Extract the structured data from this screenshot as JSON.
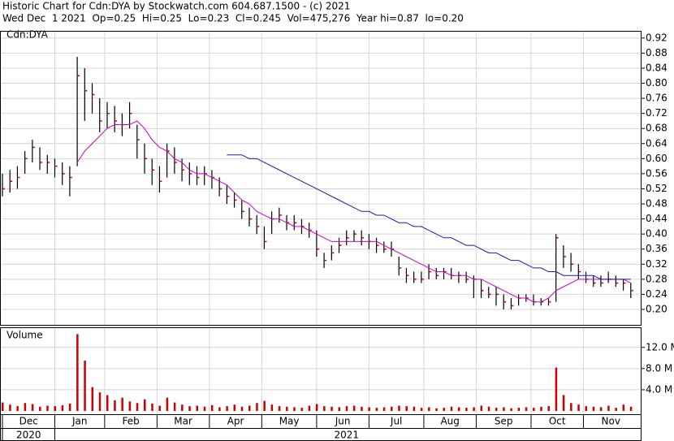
{
  "chart_data": {
    "type": "ohlc",
    "title": "Historic Chart for Cdn:DYA by Stockwatch.com 604.687.1500 - (c) 2021",
    "subtitle": "Wed Dec  1 2021  Op=0.25  Hi=0.25  Lo=0.23  Cl=0.245  Vol=475,276  Year hi=0.87  lo=0.20",
    "symbol": "Cdn:DYA",
    "grid": true,
    "bar_color": "#000000",
    "close_color": "#cc0000",
    "xlim": [
      0,
      255
    ],
    "x": [
      0,
      3,
      6,
      9,
      12,
      15,
      18,
      21,
      24,
      27,
      30,
      33,
      36,
      39,
      42,
      45,
      48,
      51,
      54,
      57,
      60,
      63,
      66,
      69,
      72,
      75,
      78,
      81,
      84,
      87,
      90,
      93,
      96,
      99,
      102,
      105,
      108,
      111,
      114,
      117,
      120,
      123,
      126,
      129,
      132,
      135,
      138,
      141,
      144,
      147,
      150,
      153,
      156,
      159,
      162,
      165,
      168,
      171,
      174,
      177,
      180,
      183,
      186,
      189,
      192,
      195,
      198,
      201,
      204,
      207,
      210,
      213,
      216,
      219,
      222,
      225,
      228,
      231,
      234,
      237,
      240,
      243,
      246,
      249,
      252
    ],
    "xticks": [
      {
        "value": 0,
        "label": "Dec"
      },
      {
        "value": 21,
        "label": "Jan"
      },
      {
        "value": 41,
        "label": "Feb"
      },
      {
        "value": 62,
        "label": "Mar"
      },
      {
        "value": 83,
        "label": "Apr"
      },
      {
        "value": 104,
        "label": "May"
      },
      {
        "value": 126,
        "label": "Jun"
      },
      {
        "value": 147,
        "label": "Jul"
      },
      {
        "value": 169,
        "label": "Aug"
      },
      {
        "value": 190,
        "label": "Sep"
      },
      {
        "value": 212,
        "label": "Oct"
      },
      {
        "value": 233,
        "label": "Nov"
      }
    ],
    "year_ticks": [
      {
        "value": 0,
        "label": "2020"
      },
      {
        "value": 21,
        "label": "2021"
      }
    ],
    "ylim": [
      0.159,
      0.939
    ],
    "yticks": [
      {
        "value": 0.2,
        "label": "0.20"
      },
      0.24,
      0.28,
      0.32,
      0.36,
      {
        "value": 0.4,
        "label": "0.40"
      },
      0.44,
      0.48,
      0.52,
      0.56,
      {
        "value": 0.6,
        "label": "0.60"
      },
      0.64,
      0.68,
      0.72,
      0.76,
      {
        "value": 0.8,
        "label": "0.80"
      },
      0.84,
      0.88,
      0.92
    ],
    "high": [
      0.56,
      0.57,
      0.58,
      0.62,
      0.65,
      0.63,
      0.61,
      0.6,
      0.59,
      0.58,
      0.87,
      0.84,
      0.8,
      0.76,
      0.75,
      0.74,
      0.72,
      0.75,
      0.69,
      0.64,
      0.6,
      0.58,
      0.64,
      0.63,
      0.6,
      0.59,
      0.58,
      0.58,
      0.57,
      0.55,
      0.53,
      0.51,
      0.49,
      0.47,
      0.45,
      0.42,
      0.46,
      0.47,
      0.45,
      0.45,
      0.44,
      0.43,
      0.41,
      0.35,
      0.37,
      0.39,
      0.41,
      0.41,
      0.41,
      0.4,
      0.39,
      0.38,
      0.38,
      0.34,
      0.31,
      0.3,
      0.3,
      0.32,
      0.31,
      0.31,
      0.31,
      0.3,
      0.3,
      0.29,
      0.28,
      0.26,
      0.26,
      0.24,
      0.23,
      0.24,
      0.24,
      0.24,
      0.23,
      0.23,
      0.4,
      0.37,
      0.35,
      0.32,
      0.3,
      0.29,
      0.29,
      0.3,
      0.29,
      0.28,
      0.27
    ],
    "low": [
      0.5,
      0.51,
      0.52,
      0.56,
      0.59,
      0.57,
      0.56,
      0.55,
      0.53,
      0.5,
      0.58,
      0.7,
      0.72,
      0.67,
      0.68,
      0.67,
      0.66,
      0.68,
      0.6,
      0.56,
      0.53,
      0.51,
      0.55,
      0.56,
      0.54,
      0.53,
      0.53,
      0.53,
      0.52,
      0.5,
      0.48,
      0.47,
      0.44,
      0.42,
      0.4,
      0.36,
      0.4,
      0.43,
      0.41,
      0.41,
      0.4,
      0.39,
      0.34,
      0.31,
      0.33,
      0.35,
      0.37,
      0.38,
      0.37,
      0.36,
      0.35,
      0.35,
      0.34,
      0.29,
      0.27,
      0.27,
      0.27,
      0.28,
      0.28,
      0.28,
      0.28,
      0.27,
      0.27,
      0.23,
      0.23,
      0.23,
      0.21,
      0.2,
      0.2,
      0.21,
      0.22,
      0.21,
      0.21,
      0.21,
      0.22,
      0.31,
      0.3,
      0.28,
      0.27,
      0.26,
      0.26,
      0.27,
      0.26,
      0.25,
      0.23
    ],
    "close": [
      0.52,
      0.54,
      0.55,
      0.6,
      0.63,
      0.59,
      0.59,
      0.58,
      0.56,
      0.55,
      0.82,
      0.78,
      0.77,
      0.7,
      0.72,
      0.7,
      0.69,
      0.72,
      0.65,
      0.6,
      0.57,
      0.54,
      0.62,
      0.59,
      0.57,
      0.56,
      0.55,
      0.56,
      0.55,
      0.52,
      0.5,
      0.49,
      0.46,
      0.44,
      0.42,
      0.38,
      0.44,
      0.45,
      0.43,
      0.43,
      0.42,
      0.41,
      0.36,
      0.33,
      0.35,
      0.37,
      0.39,
      0.4,
      0.39,
      0.38,
      0.37,
      0.36,
      0.36,
      0.31,
      0.29,
      0.28,
      0.28,
      0.3,
      0.29,
      0.3,
      0.29,
      0.29,
      0.28,
      0.28,
      0.25,
      0.24,
      0.24,
      0.22,
      0.21,
      0.23,
      0.23,
      0.22,
      0.22,
      0.22,
      0.39,
      0.34,
      0.32,
      0.3,
      0.28,
      0.27,
      0.27,
      0.28,
      0.27,
      0.27,
      0.25
    ],
    "series": [
      {
        "color": "#cc00cc",
        "values": [
          null,
          null,
          null,
          null,
          null,
          null,
          null,
          null,
          null,
          null,
          0.59,
          0.62,
          0.64,
          0.66,
          0.68,
          0.69,
          0.69,
          0.69,
          0.7,
          0.68,
          0.65,
          0.63,
          0.62,
          0.6,
          0.59,
          0.57,
          0.56,
          0.56,
          0.55,
          0.54,
          0.53,
          0.51,
          0.49,
          0.48,
          0.46,
          0.45,
          0.44,
          0.44,
          0.43,
          0.42,
          0.42,
          0.41,
          0.4,
          0.39,
          0.38,
          0.38,
          0.38,
          0.38,
          0.38,
          0.38,
          0.38,
          0.37,
          0.36,
          0.35,
          0.34,
          0.33,
          0.32,
          0.31,
          0.3,
          0.3,
          0.29,
          0.29,
          0.29,
          0.28,
          0.28,
          0.27,
          0.26,
          0.25,
          0.24,
          0.23,
          0.23,
          0.22,
          0.22,
          0.23,
          0.25,
          0.26,
          0.27,
          0.28,
          0.28,
          0.28,
          0.28,
          0.28,
          0.28,
          0.28,
          0.27
        ]
      },
      {
        "color": "#1a1ab0",
        "values": [
          null,
          null,
          null,
          null,
          null,
          null,
          null,
          null,
          null,
          null,
          null,
          null,
          null,
          null,
          null,
          null,
          null,
          null,
          null,
          null,
          null,
          null,
          null,
          null,
          null,
          null,
          null,
          null,
          null,
          null,
          0.61,
          0.61,
          0.61,
          0.6,
          0.6,
          0.59,
          0.58,
          0.57,
          0.56,
          0.55,
          0.54,
          0.53,
          0.52,
          0.51,
          0.5,
          0.49,
          0.48,
          0.47,
          0.46,
          0.46,
          0.45,
          0.45,
          0.44,
          0.43,
          0.43,
          0.42,
          0.42,
          0.41,
          0.4,
          0.39,
          0.39,
          0.38,
          0.37,
          0.37,
          0.36,
          0.35,
          0.35,
          0.34,
          0.33,
          0.33,
          0.32,
          0.31,
          0.31,
          0.3,
          0.3,
          0.29,
          0.29,
          0.29,
          0.29,
          0.29,
          0.28,
          0.28,
          0.28,
          0.28,
          0.28
        ]
      }
    ],
    "volume": {
      "label": "Volume",
      "color": "#cc0000",
      "ylim": [
        0,
        15.8
      ],
      "yticks": [
        {
          "value": 4,
          "label": "4.0 M"
        },
        {
          "value": 8,
          "label": "8.0 M"
        },
        {
          "value": 12,
          "label": "12.0 M"
        }
      ],
      "values": [
        1.6,
        1.2,
        0.9,
        1.5,
        1.3,
        0.8,
        1.0,
        0.9,
        1.1,
        1.4,
        14.5,
        9.5,
        4.5,
        3.5,
        3.0,
        2.0,
        2.5,
        1.8,
        1.5,
        2.2,
        1.4,
        1.0,
        2.5,
        1.6,
        1.2,
        0.9,
        1.0,
        0.8,
        1.1,
        0.7,
        0.9,
        1.2,
        0.8,
        1.0,
        1.5,
        1.9,
        1.2,
        0.9,
        0.8,
        0.7,
        0.6,
        1.0,
        1.3,
        0.9,
        0.8,
        0.7,
        0.9,
        1.0,
        0.8,
        0.7,
        0.6,
        0.7,
        0.8,
        1.0,
        0.9,
        0.8,
        0.6,
        0.7,
        0.5,
        0.6,
        0.8,
        0.7,
        0.6,
        0.7,
        1.0,
        0.8,
        0.6,
        0.7,
        0.5,
        0.6,
        0.7,
        0.6,
        0.8,
        0.9,
        8.2,
        3.0,
        1.5,
        1.2,
        0.9,
        0.8,
        0.7,
        1.0,
        0.6,
        1.2,
        0.8
      ]
    }
  }
}
